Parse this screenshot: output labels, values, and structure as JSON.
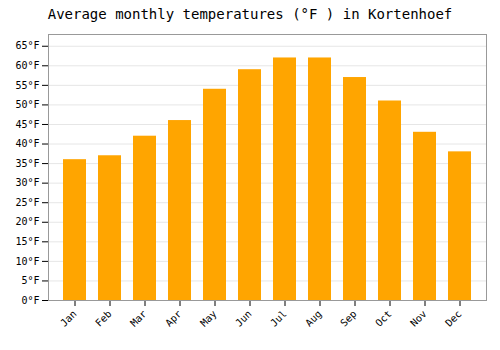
{
  "chart_data": {
    "type": "bar",
    "title": "Average monthly temperatures (°F ) in Kortenhoef",
    "categories": [
      "Jan",
      "Feb",
      "Mar",
      "Apr",
      "May",
      "Jun",
      "Jul",
      "Aug",
      "Sep",
      "Oct",
      "Nov",
      "Dec"
    ],
    "values": [
      36,
      37,
      42,
      46,
      54,
      59,
      62,
      62,
      57,
      51,
      43,
      38
    ],
    "color": "#FFA500",
    "ylim": [
      0,
      68
    ],
    "yticks": [
      {
        "value": 0,
        "label": "0°F"
      },
      {
        "value": 5,
        "label": "5°F"
      },
      {
        "value": 10,
        "label": "10°F"
      },
      {
        "value": 15,
        "label": "15°F"
      },
      {
        "value": 20,
        "label": "20°F"
      },
      {
        "value": 25,
        "label": "25°F"
      },
      {
        "value": 30,
        "label": "30°F"
      },
      {
        "value": 35,
        "label": "35°F"
      },
      {
        "value": 40,
        "label": "40°F"
      },
      {
        "value": 45,
        "label": "45°F"
      },
      {
        "value": 50,
        "label": "50°F"
      },
      {
        "value": 55,
        "label": "55°F"
      },
      {
        "value": 60,
        "label": "60°F"
      },
      {
        "value": 65,
        "label": "65°F"
      }
    ],
    "grid": true
  }
}
